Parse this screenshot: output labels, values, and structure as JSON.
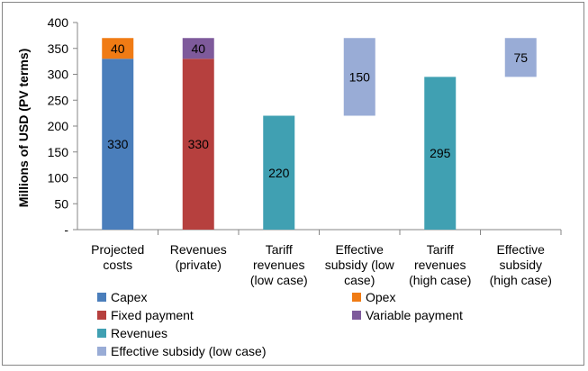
{
  "chart_data": {
    "type": "bar",
    "stacked": true,
    "ylabel": "Millions of USD (PV terms)",
    "ylim": [
      0,
      400
    ],
    "yticks": [
      {
        "value": 0,
        "label": "-"
      },
      {
        "value": 50,
        "label": "50"
      },
      {
        "value": 100,
        "label": "100"
      },
      {
        "value": 150,
        "label": "150"
      },
      {
        "value": 200,
        "label": "200"
      },
      {
        "value": 250,
        "label": "250"
      },
      {
        "value": 300,
        "label": "300"
      },
      {
        "value": 350,
        "label": "350"
      },
      {
        "value": 400,
        "label": "400"
      }
    ],
    "grid": false,
    "legend_position": "bottom",
    "categories": [
      [
        "Projected",
        "costs"
      ],
      [
        "Revenues",
        "(private)"
      ],
      [
        "Tariff",
        "revenues",
        "(low case)"
      ],
      [
        "Effective",
        "subsidy (low",
        "case)"
      ],
      [
        "Tariff",
        "revenues",
        "(high case)"
      ],
      [
        "Effective",
        "subsidy",
        "(high case)"
      ]
    ],
    "segments": [
      {
        "series": "Capex",
        "category": 0,
        "base": 0,
        "value": 330,
        "label": "330"
      },
      {
        "series": "Opex",
        "category": 0,
        "base": 330,
        "value": 40,
        "label": "40"
      },
      {
        "series": "Fixed payment",
        "category": 1,
        "base": 0,
        "value": 330,
        "label": "330"
      },
      {
        "series": "Variable payment",
        "category": 1,
        "base": 330,
        "value": 40,
        "label": "40"
      },
      {
        "series": "Revenues",
        "category": 2,
        "base": 0,
        "value": 220,
        "label": "220"
      },
      {
        "series": "Effective subsidy (low case)",
        "category": 3,
        "base": 220,
        "value": 150,
        "label": "150"
      },
      {
        "series": "Revenues",
        "category": 4,
        "base": 0,
        "value": 295,
        "label": "295"
      },
      {
        "series": "Effective subsidy (low case)",
        "category": 5,
        "base": 295,
        "value": 75,
        "label": "75"
      }
    ],
    "series_colors": {
      "Capex": "#4a7ebb",
      "Opex": "#f07b14",
      "Fixed payment": "#b6403e",
      "Variable payment": "#7e5a9b",
      "Revenues": "#40a0b2",
      "Effective subsidy (low case)": "#99acd6"
    },
    "legend": [
      {
        "label": "Capex",
        "color": "#4a7ebb"
      },
      {
        "label": "Opex",
        "color": "#f07b14"
      },
      {
        "label": "Fixed payment",
        "color": "#b6403e"
      },
      {
        "label": "Variable payment",
        "color": "#7e5a9b"
      },
      {
        "label": "Revenues",
        "color": "#40a0b2"
      },
      {
        "label": "Effective subsidy (low case)",
        "color": "#99acd6"
      }
    ]
  }
}
